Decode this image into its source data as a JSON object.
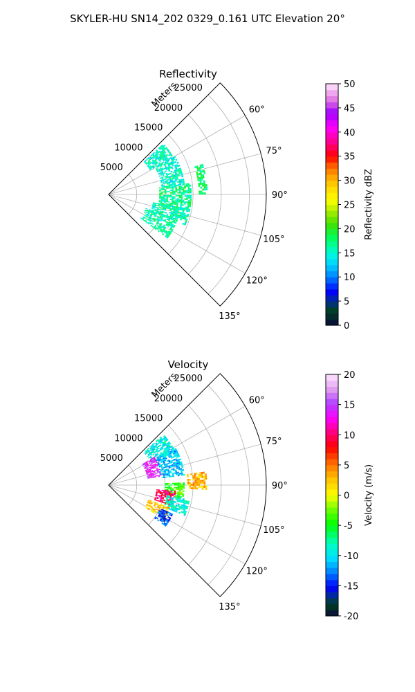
{
  "figure": {
    "suptitle": "SKYLER-HU  SN14_202  0329_0.161 UTC Elevation 20°"
  },
  "chart_data": [
    {
      "type": "polar-sector-radar",
      "title": "Reflectivity",
      "radial_label": "Meters",
      "radial_ticks": [
        5000,
        10000,
        15000,
        20000,
        25000
      ],
      "rmax": 28000,
      "angular_ticks_deg": [
        60,
        75,
        90,
        105,
        120,
        135
      ],
      "angular_range_deg": [
        45,
        135
      ],
      "grid": true,
      "colorbar": {
        "label": "Reflectivity dBZ",
        "range": [
          0,
          50
        ],
        "ticks": [
          0,
          5,
          10,
          15,
          20,
          25,
          30,
          35,
          40,
          45,
          50
        ],
        "colormap": "pyart_NWSRef-like"
      },
      "variable": "reflectivity",
      "value_range_observed": [
        10,
        20
      ],
      "echo_regions": [
        {
          "az": [
            47,
            60
          ],
          "r": [
            8500,
            13000
          ],
          "mean": 15
        },
        {
          "az": [
            60,
            82
          ],
          "r": [
            9500,
            13500
          ],
          "mean": 15
        },
        {
          "az": [
            82,
            102
          ],
          "r": [
            9000,
            14500
          ],
          "mean": 17
        },
        {
          "az": [
            100,
            112
          ],
          "r": [
            8000,
            14500
          ],
          "mean": 16
        },
        {
          "az": [
            110,
            126
          ],
          "r": [
            7000,
            13000
          ],
          "mean": 16
        },
        {
          "az": [
            72,
            90
          ],
          "r": [
            16000,
            17500
          ],
          "mean": 18
        }
      ]
    },
    {
      "type": "polar-sector-radar",
      "title": "Velocity",
      "radial_label": "Meters",
      "radial_ticks": [
        5000,
        10000,
        15000,
        20000,
        25000
      ],
      "rmax": 28000,
      "angular_ticks_deg": [
        60,
        75,
        90,
        105,
        120,
        135
      ],
      "angular_range_deg": [
        45,
        135
      ],
      "grid": true,
      "colorbar": {
        "label": "Velocity (m/s)",
        "range": [
          -20,
          20
        ],
        "ticks": [
          -20,
          -15,
          -10,
          -5,
          0,
          5,
          10,
          15,
          20
        ],
        "colormap": "pyart_BuDRd-like"
      },
      "variable": "velocity",
      "value_range_observed": [
        -18,
        15
      ],
      "echo_regions": [
        {
          "az": [
            47,
            62
          ],
          "r": [
            8500,
            13000
          ],
          "mean": -9
        },
        {
          "az": [
            58,
            80
          ],
          "r": [
            7000,
            9500
          ],
          "mean": 14
        },
        {
          "az": [
            60,
            82
          ],
          "r": [
            9500,
            13500
          ],
          "mean": -11
        },
        {
          "az": [
            82,
            92
          ],
          "r": [
            14000,
            17500
          ],
          "mean": 3
        },
        {
          "az": [
            88,
            100
          ],
          "r": [
            10000,
            13500
          ],
          "mean": -4
        },
        {
          "az": [
            95,
            108
          ],
          "r": [
            8500,
            12000
          ],
          "mean": 10
        },
        {
          "az": [
            100,
            112
          ],
          "r": [
            10500,
            14500
          ],
          "mean": -9
        },
        {
          "az": [
            110,
            122
          ],
          "r": [
            7500,
            11500
          ],
          "mean": 2
        },
        {
          "az": [
            114,
            126
          ],
          "r": [
            10000,
            12500
          ],
          "mean": -14
        }
      ]
    }
  ]
}
